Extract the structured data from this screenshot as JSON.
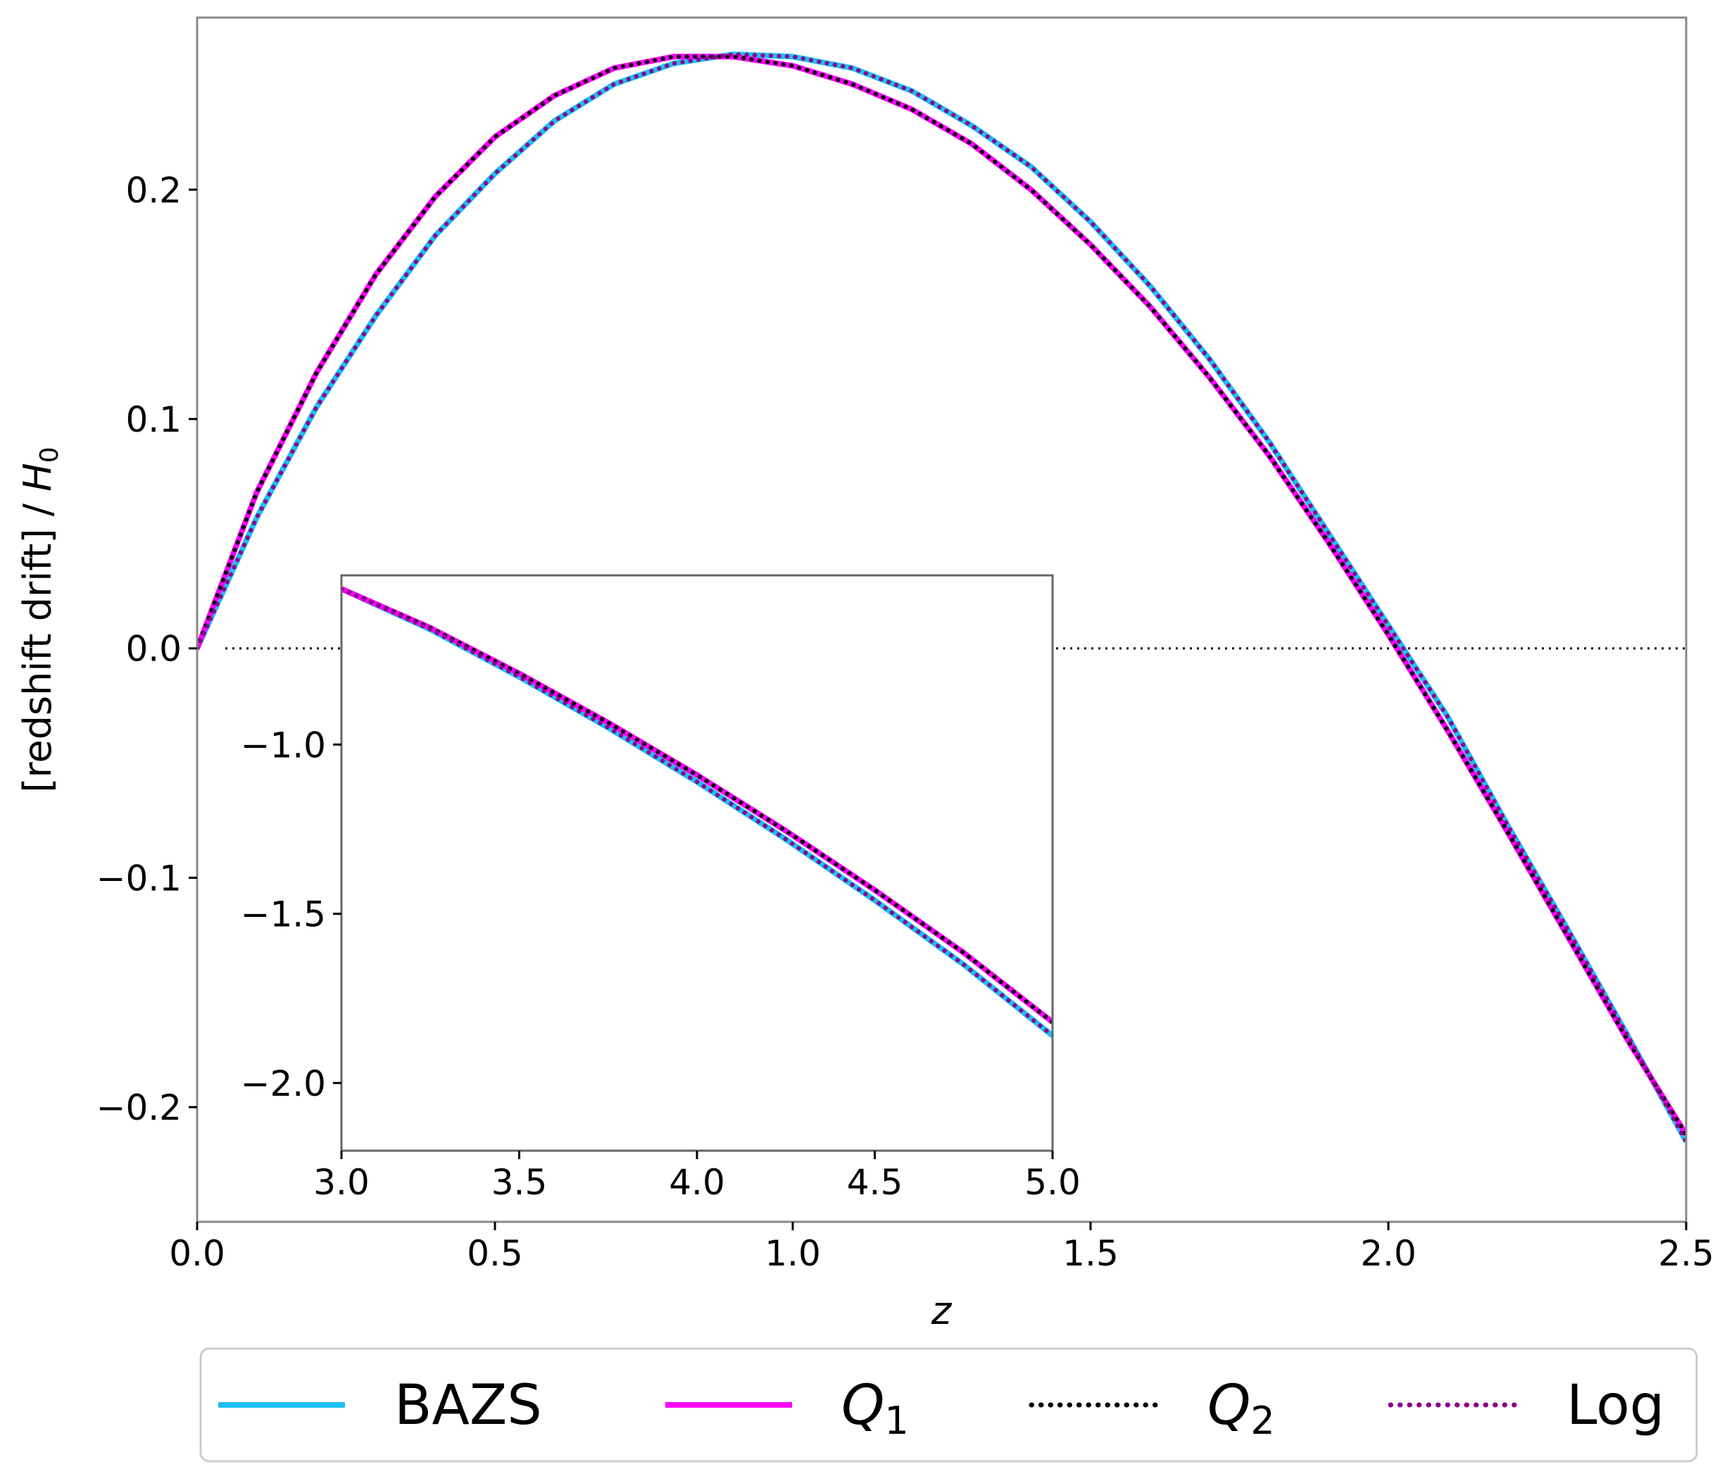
{
  "chart_data": [
    {
      "type": "line",
      "xlabel_var": "z",
      "ylabel_text": "[redshift drift] / ",
      "ylabel_var": "H",
      "ylabel_sub": "0",
      "xlim": [
        0,
        2.5
      ],
      "ylim": [
        -0.25,
        0.275
      ],
      "x_ticks": [
        0,
        0.5,
        1,
        1.5,
        2,
        2.5
      ],
      "x_tick_labels": [
        "0.0",
        "0.5",
        "1.0",
        "1.5",
        "2.0",
        "2.5"
      ],
      "y_ticks": [
        -0.2,
        -0.1,
        0,
        0.1,
        0.2
      ],
      "y_tick_labels": [
        "−0.2",
        "−0.1",
        "0.0",
        "0.1",
        "0.2"
      ],
      "grid": false,
      "reference_line": {
        "y": 0,
        "style": "dotted"
      },
      "series": [
        {
          "name": "BAZS",
          "color": "#1ec0f2",
          "style": "solid",
          "x": [
            0,
            0.1,
            0.2,
            0.3,
            0.4,
            0.5,
            0.6,
            0.7,
            0.8,
            0.9,
            1.0,
            1.1,
            1.2,
            1.3,
            1.4,
            1.5,
            1.6,
            1.7,
            1.8,
            1.9,
            2.0,
            2.1,
            2.2,
            2.3,
            2.4,
            2.5
          ],
          "y": [
            0,
            0.057,
            0.105,
            0.145,
            0.18,
            0.207,
            0.23,
            0.246,
            0.255,
            0.259,
            0.258,
            0.253,
            0.243,
            0.228,
            0.21,
            0.186,
            0.158,
            0.126,
            0.09,
            0.05,
            0.01,
            -0.03,
            -0.077,
            -0.122,
            -0.168,
            -0.215
          ]
        },
        {
          "name": "Q",
          "name_sub": "1",
          "color": "#ff00ff",
          "style": "solid",
          "x": [
            0,
            0.1,
            0.2,
            0.3,
            0.4,
            0.5,
            0.6,
            0.7,
            0.8,
            0.9,
            1.0,
            1.1,
            1.2,
            1.3,
            1.4,
            1.5,
            1.6,
            1.7,
            1.8,
            1.9,
            2.0,
            2.1,
            2.2,
            2.3,
            2.4,
            2.5
          ],
          "y": [
            0,
            0.068,
            0.12,
            0.163,
            0.197,
            0.223,
            0.241,
            0.253,
            0.258,
            0.258,
            0.254,
            0.246,
            0.235,
            0.22,
            0.2,
            0.176,
            0.149,
            0.118,
            0.084,
            0.046,
            0.006,
            -0.036,
            -0.08,
            -0.125,
            -0.17,
            -0.212
          ]
        },
        {
          "name": "Q",
          "name_sub": "2",
          "color": "#000000",
          "style": "dotted",
          "x": [
            0,
            0.1,
            0.2,
            0.3,
            0.4,
            0.5,
            0.6,
            0.7,
            0.8,
            0.9,
            1.0,
            1.1,
            1.2,
            1.3,
            1.4,
            1.5,
            1.6,
            1.7,
            1.8,
            1.9,
            2.0,
            2.1,
            2.2,
            2.3,
            2.4,
            2.5
          ],
          "y": [
            0,
            0.068,
            0.12,
            0.163,
            0.197,
            0.223,
            0.241,
            0.253,
            0.258,
            0.258,
            0.254,
            0.246,
            0.235,
            0.22,
            0.2,
            0.176,
            0.149,
            0.118,
            0.084,
            0.046,
            0.006,
            -0.036,
            -0.08,
            -0.125,
            -0.17,
            -0.212
          ]
        },
        {
          "name": "Log",
          "color": "#8b008b",
          "style": "dotted",
          "x": [
            0,
            0.1,
            0.2,
            0.3,
            0.4,
            0.5,
            0.6,
            0.7,
            0.8,
            0.9,
            1.0,
            1.1,
            1.2,
            1.3,
            1.4,
            1.5,
            1.6,
            1.7,
            1.8,
            1.9,
            2.0,
            2.1,
            2.2,
            2.3,
            2.4,
            2.5
          ],
          "y": [
            0,
            0.057,
            0.105,
            0.145,
            0.18,
            0.207,
            0.23,
            0.246,
            0.255,
            0.259,
            0.258,
            0.253,
            0.243,
            0.228,
            0.21,
            0.186,
            0.158,
            0.126,
            0.09,
            0.05,
            0.01,
            -0.03,
            -0.077,
            -0.122,
            -0.168,
            -0.215
          ]
        }
      ]
    },
    {
      "type": "line",
      "role": "inset",
      "xlim": [
        3,
        5
      ],
      "ylim": [
        -2.2,
        -0.5
      ],
      "x_ticks": [
        3,
        3.5,
        4,
        4.5,
        5
      ],
      "x_tick_labels": [
        "3.0",
        "3.5",
        "4.0",
        "4.5",
        "5.0"
      ],
      "y_ticks": [
        -1.0,
        -1.5,
        -2.0
      ],
      "y_tick_labels": [
        "−1.0",
        "−1.5",
        "−2.0"
      ],
      "grid": false,
      "series": [
        {
          "name": "BAZS",
          "color": "#1ec0f2",
          "style": "solid",
          "x": [
            3.0,
            3.25,
            3.5,
            3.75,
            4.0,
            4.25,
            4.5,
            4.75,
            5.0
          ],
          "y": [
            -0.54,
            -0.66,
            -0.8,
            -0.95,
            -1.11,
            -1.28,
            -1.46,
            -1.65,
            -1.86
          ]
        },
        {
          "name": "Q",
          "name_sub": "1",
          "color": "#ff00ff",
          "style": "solid",
          "x": [
            3.0,
            3.25,
            3.5,
            3.75,
            4.0,
            4.25,
            4.5,
            4.75,
            5.0
          ],
          "y": [
            -0.54,
            -0.655,
            -0.79,
            -0.935,
            -1.09,
            -1.255,
            -1.43,
            -1.615,
            -1.82
          ]
        },
        {
          "name": "Q",
          "name_sub": "2",
          "color": "#000000",
          "style": "dotted",
          "x": [
            3.0,
            3.25,
            3.5,
            3.75,
            4.0,
            4.25,
            4.5,
            4.75,
            5.0
          ],
          "y": [
            -0.54,
            -0.655,
            -0.79,
            -0.935,
            -1.09,
            -1.255,
            -1.43,
            -1.615,
            -1.82
          ]
        },
        {
          "name": "Log",
          "color": "#8b008b",
          "style": "dotted",
          "x": [
            3.0,
            3.25,
            3.5,
            3.75,
            4.0,
            4.25,
            4.5,
            4.75,
            5.0
          ],
          "y": [
            -0.54,
            -0.66,
            -0.8,
            -0.95,
            -1.11,
            -1.28,
            -1.46,
            -1.65,
            -1.86
          ]
        }
      ]
    }
  ],
  "legend": {
    "placement": "bottom",
    "entries": [
      {
        "name": "BAZS",
        "color": "#1ec0f2",
        "style": "solid"
      },
      {
        "name": "Q",
        "name_sub": "1",
        "color": "#ff00ff",
        "style": "solid"
      },
      {
        "name": "Q",
        "name_sub": "2",
        "color": "#000000",
        "style": "dotted"
      },
      {
        "name": "Log",
        "color": "#8b008b",
        "style": "dotted"
      }
    ]
  }
}
